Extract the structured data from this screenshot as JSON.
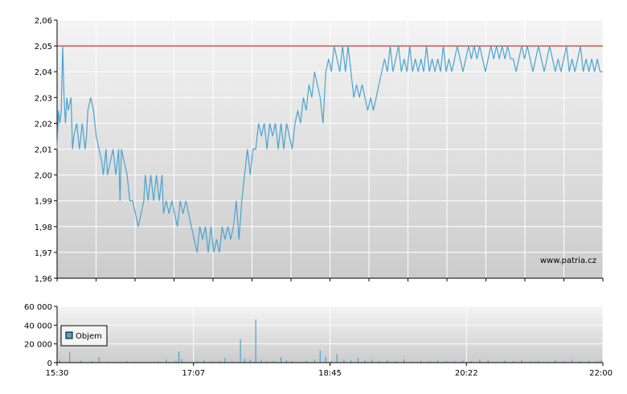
{
  "chart_data": [
    {
      "type": "line",
      "watermark": "www.patria.cz",
      "y_ticks": [
        "2,06",
        "2,05",
        "2,04",
        "2,03",
        "2,02",
        "2,01",
        "2,00",
        "1,99",
        "1,98",
        "1,97",
        "1,96"
      ],
      "ylim": [
        1.96,
        2.06
      ],
      "xlim_minutes": [
        930,
        1320
      ],
      "reference_line": {
        "value": 2.05,
        "color": "#cc0000"
      },
      "grid": true,
      "series": [
        {
          "color": "#4aa3d0",
          "points": [
            [
              930,
              2.01
            ],
            [
              931,
              2.025
            ],
            [
              932,
              2.02
            ],
            [
              933,
              2.025
            ],
            [
              934,
              2.05
            ],
            [
              935,
              2.03
            ],
            [
              936,
              2.02
            ],
            [
              937,
              2.03
            ],
            [
              938,
              2.025
            ],
            [
              940,
              2.03
            ],
            [
              941,
              2.01
            ],
            [
              942,
              2.015
            ],
            [
              944,
              2.02
            ],
            [
              946,
              2.01
            ],
            [
              948,
              2.02
            ],
            [
              950,
              2.01
            ],
            [
              951,
              2.015
            ],
            [
              952,
              2.025
            ],
            [
              954,
              2.03
            ],
            [
              956,
              2.025
            ],
            [
              958,
              2.015
            ],
            [
              960,
              2.01
            ],
            [
              962,
              2.005
            ],
            [
              963,
              2.0
            ],
            [
              965,
              2.01
            ],
            [
              966,
              2.0
            ],
            [
              968,
              2.005
            ],
            [
              970,
              2.01
            ],
            [
              972,
              2.0
            ],
            [
              974,
              2.01
            ],
            [
              975,
              1.99
            ],
            [
              976,
              2.01
            ],
            [
              978,
              2.005
            ],
            [
              980,
              2.0
            ],
            [
              982,
              1.99
            ],
            [
              984,
              1.99
            ],
            [
              986,
              1.985
            ],
            [
              988,
              1.98
            ],
            [
              990,
              1.985
            ],
            [
              992,
              1.99
            ],
            [
              993,
              2.0
            ],
            [
              995,
              1.99
            ],
            [
              997,
              2.0
            ],
            [
              999,
              1.99
            ],
            [
              1001,
              2.0
            ],
            [
              1003,
              1.99
            ],
            [
              1005,
              2.0
            ],
            [
              1006,
              1.985
            ],
            [
              1008,
              1.99
            ],
            [
              1010,
              1.985
            ],
            [
              1012,
              1.99
            ],
            [
              1014,
              1.985
            ],
            [
              1016,
              1.98
            ],
            [
              1018,
              1.99
            ],
            [
              1020,
              1.985
            ],
            [
              1022,
              1.99
            ],
            [
              1024,
              1.985
            ],
            [
              1026,
              1.98
            ],
            [
              1028,
              1.975
            ],
            [
              1030,
              1.97
            ],
            [
              1032,
              1.98
            ],
            [
              1034,
              1.975
            ],
            [
              1036,
              1.98
            ],
            [
              1038,
              1.97
            ],
            [
              1040,
              1.98
            ],
            [
              1042,
              1.97
            ],
            [
              1044,
              1.975
            ],
            [
              1046,
              1.97
            ],
            [
              1048,
              1.98
            ],
            [
              1050,
              1.975
            ],
            [
              1052,
              1.98
            ],
            [
              1054,
              1.975
            ],
            [
              1056,
              1.98
            ],
            [
              1058,
              1.99
            ],
            [
              1060,
              1.975
            ],
            [
              1062,
              1.99
            ],
            [
              1064,
              2.0
            ],
            [
              1066,
              2.01
            ],
            [
              1068,
              2.0
            ],
            [
              1070,
              2.01
            ],
            [
              1072,
              2.01
            ],
            [
              1074,
              2.02
            ],
            [
              1076,
              2.015
            ],
            [
              1078,
              2.02
            ],
            [
              1080,
              2.01
            ],
            [
              1082,
              2.02
            ],
            [
              1084,
              2.015
            ],
            [
              1086,
              2.02
            ],
            [
              1088,
              2.01
            ],
            [
              1090,
              2.02
            ],
            [
              1092,
              2.01
            ],
            [
              1094,
              2.02
            ],
            [
              1096,
              2.015
            ],
            [
              1098,
              2.01
            ],
            [
              1100,
              2.02
            ],
            [
              1102,
              2.025
            ],
            [
              1104,
              2.02
            ],
            [
              1106,
              2.03
            ],
            [
              1108,
              2.025
            ],
            [
              1110,
              2.035
            ],
            [
              1112,
              2.03
            ],
            [
              1114,
              2.04
            ],
            [
              1116,
              2.035
            ],
            [
              1118,
              2.03
            ],
            [
              1120,
              2.02
            ],
            [
              1122,
              2.04
            ],
            [
              1124,
              2.045
            ],
            [
              1126,
              2.04
            ],
            [
              1128,
              2.05
            ],
            [
              1130,
              2.045
            ],
            [
              1132,
              2.04
            ],
            [
              1134,
              2.05
            ],
            [
              1136,
              2.04
            ],
            [
              1138,
              2.05
            ],
            [
              1140,
              2.04
            ],
            [
              1142,
              2.03
            ],
            [
              1144,
              2.035
            ],
            [
              1146,
              2.03
            ],
            [
              1148,
              2.035
            ],
            [
              1150,
              2.03
            ],
            [
              1152,
              2.025
            ],
            [
              1154,
              2.03
            ],
            [
              1156,
              2.025
            ],
            [
              1158,
              2.03
            ],
            [
              1160,
              2.035
            ],
            [
              1162,
              2.04
            ],
            [
              1164,
              2.045
            ],
            [
              1166,
              2.04
            ],
            [
              1168,
              2.05
            ],
            [
              1170,
              2.04
            ],
            [
              1172,
              2.045
            ],
            [
              1174,
              2.05
            ],
            [
              1176,
              2.04
            ],
            [
              1178,
              2.045
            ],
            [
              1180,
              2.04
            ],
            [
              1182,
              2.05
            ],
            [
              1184,
              2.04
            ],
            [
              1186,
              2.045
            ],
            [
              1188,
              2.04
            ],
            [
              1190,
              2.045
            ],
            [
              1192,
              2.04
            ],
            [
              1194,
              2.05
            ],
            [
              1196,
              2.04
            ],
            [
              1198,
              2.045
            ],
            [
              1200,
              2.04
            ],
            [
              1202,
              2.045
            ],
            [
              1204,
              2.04
            ],
            [
              1206,
              2.05
            ],
            [
              1208,
              2.04
            ],
            [
              1210,
              2.045
            ],
            [
              1212,
              2.04
            ],
            [
              1214,
              2.045
            ],
            [
              1216,
              2.05
            ],
            [
              1218,
              2.045
            ],
            [
              1220,
              2.04
            ],
            [
              1222,
              2.045
            ],
            [
              1224,
              2.05
            ],
            [
              1226,
              2.045
            ],
            [
              1228,
              2.05
            ],
            [
              1230,
              2.045
            ],
            [
              1232,
              2.05
            ],
            [
              1234,
              2.045
            ],
            [
              1236,
              2.04
            ],
            [
              1238,
              2.045
            ],
            [
              1240,
              2.05
            ],
            [
              1242,
              2.045
            ],
            [
              1244,
              2.05
            ],
            [
              1246,
              2.045
            ],
            [
              1248,
              2.05
            ],
            [
              1250,
              2.045
            ],
            [
              1252,
              2.05
            ],
            [
              1254,
              2.045
            ],
            [
              1256,
              2.045
            ],
            [
              1258,
              2.04
            ],
            [
              1260,
              2.045
            ],
            [
              1262,
              2.05
            ],
            [
              1264,
              2.045
            ],
            [
              1266,
              2.05
            ],
            [
              1268,
              2.045
            ],
            [
              1270,
              2.04
            ],
            [
              1272,
              2.045
            ],
            [
              1274,
              2.05
            ],
            [
              1276,
              2.045
            ],
            [
              1278,
              2.04
            ],
            [
              1280,
              2.045
            ],
            [
              1282,
              2.05
            ],
            [
              1284,
              2.045
            ],
            [
              1286,
              2.04
            ],
            [
              1288,
              2.045
            ],
            [
              1290,
              2.04
            ],
            [
              1292,
              2.045
            ],
            [
              1294,
              2.05
            ],
            [
              1296,
              2.04
            ],
            [
              1298,
              2.045
            ],
            [
              1300,
              2.04
            ],
            [
              1302,
              2.045
            ],
            [
              1304,
              2.05
            ],
            [
              1306,
              2.04
            ],
            [
              1308,
              2.045
            ],
            [
              1310,
              2.04
            ],
            [
              1312,
              2.045
            ],
            [
              1314,
              2.04
            ],
            [
              1316,
              2.045
            ],
            [
              1318,
              2.04
            ],
            [
              1320,
              2.04
            ]
          ]
        }
      ]
    },
    {
      "type": "bar",
      "legend": "Objem",
      "legend_position": "left",
      "y_ticks": [
        "60 000",
        "40 000",
        "20 000",
        "0"
      ],
      "ylim": [
        0,
        60000
      ],
      "x_ticks": [
        "15:30",
        "17:07",
        "18:45",
        "20:22",
        "22:00"
      ],
      "xlim_minutes": [
        930,
        1320
      ],
      "grid": true,
      "color": "#4aa3d0",
      "bars": [
        [
          932,
          3000
        ],
        [
          939,
          11000
        ],
        [
          947,
          2000
        ],
        [
          955,
          1500
        ],
        [
          960,
          6000
        ],
        [
          966,
          1000
        ],
        [
          972,
          800
        ],
        [
          980,
          1500
        ],
        [
          985,
          900
        ],
        [
          990,
          700
        ],
        [
          996,
          600
        ],
        [
          1002,
          1200
        ],
        [
          1008,
          3000
        ],
        [
          1015,
          2000
        ],
        [
          1017,
          12000
        ],
        [
          1019,
          4000
        ],
        [
          1025,
          800
        ],
        [
          1030,
          1500
        ],
        [
          1035,
          2500
        ],
        [
          1040,
          1200
        ],
        [
          1046,
          1800
        ],
        [
          1050,
          5000
        ],
        [
          1055,
          1500
        ],
        [
          1061,
          25000
        ],
        [
          1064,
          4000
        ],
        [
          1068,
          3000
        ],
        [
          1072,
          46000
        ],
        [
          1076,
          3000
        ],
        [
          1080,
          1200
        ],
        [
          1085,
          1500
        ],
        [
          1090,
          6000
        ],
        [
          1094,
          2500
        ],
        [
          1098,
          1500
        ],
        [
          1102,
          800
        ],
        [
          1108,
          2000
        ],
        [
          1114,
          3500
        ],
        [
          1118,
          13000
        ],
        [
          1122,
          6000
        ],
        [
          1126,
          2000
        ],
        [
          1130,
          9000
        ],
        [
          1135,
          3000
        ],
        [
          1140,
          2500
        ],
        [
          1145,
          5000
        ],
        [
          1150,
          2200
        ],
        [
          1155,
          3000
        ],
        [
          1160,
          1500
        ],
        [
          1166,
          2500
        ],
        [
          1172,
          1200
        ],
        [
          1178,
          3500
        ],
        [
          1184,
          1000
        ],
        [
          1190,
          2000
        ],
        [
          1196,
          1500
        ],
        [
          1202,
          2500
        ],
        [
          1208,
          1800
        ],
        [
          1214,
          1200
        ],
        [
          1220,
          2200
        ],
        [
          1226,
          1500
        ],
        [
          1232,
          3000
        ],
        [
          1238,
          2500
        ],
        [
          1244,
          1000
        ],
        [
          1250,
          2000
        ],
        [
          1256,
          1500
        ],
        [
          1262,
          2500
        ],
        [
          1268,
          1200
        ],
        [
          1274,
          2000
        ],
        [
          1280,
          900
        ],
        [
          1286,
          2500
        ],
        [
          1292,
          1500
        ],
        [
          1298,
          3000
        ],
        [
          1304,
          1200
        ],
        [
          1310,
          2000
        ],
        [
          1316,
          1500
        ],
        [
          1319,
          2500
        ]
      ]
    }
  ]
}
